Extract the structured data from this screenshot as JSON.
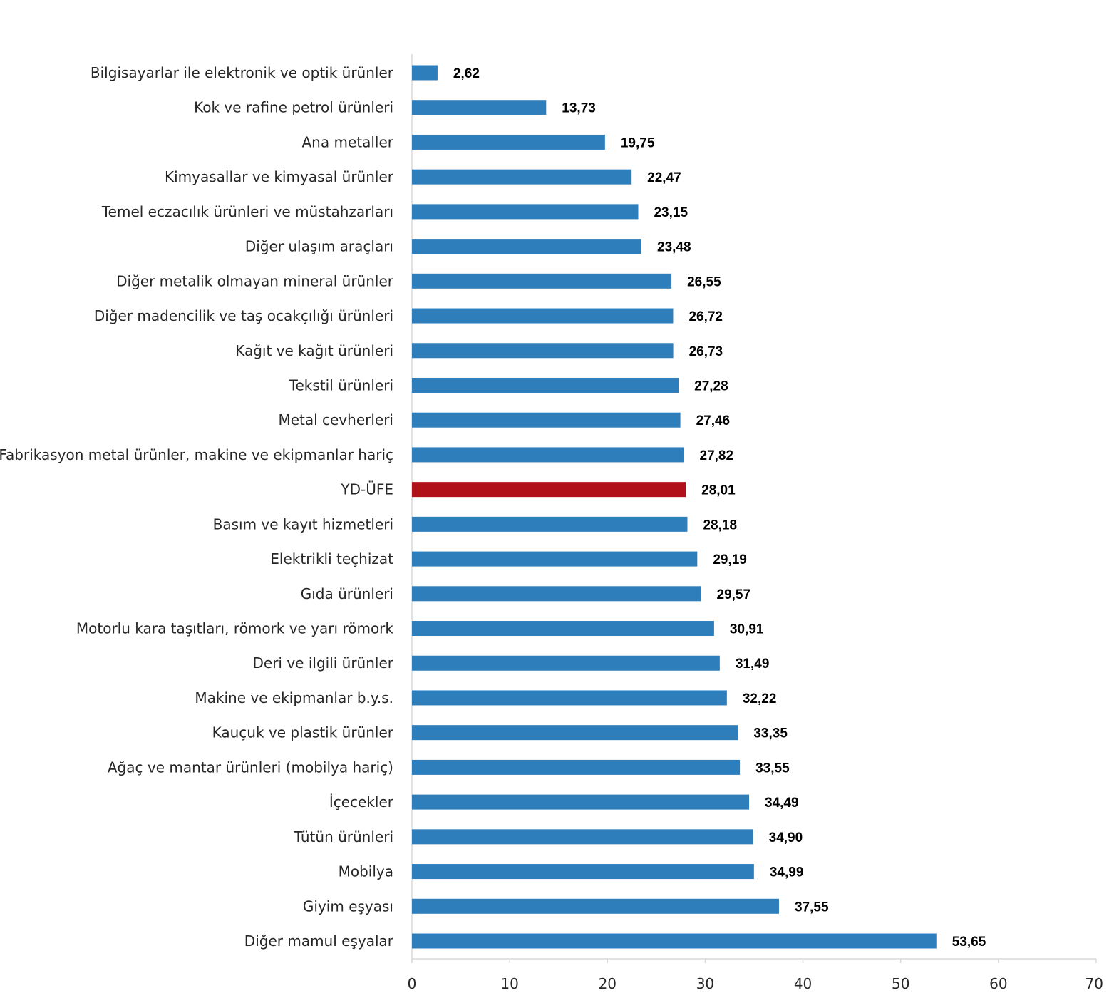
{
  "chart_data": {
    "type": "bar",
    "orientation": "horizontal",
    "title": "",
    "xlabel": "",
    "ylabel": "",
    "xlim": [
      0,
      70
    ],
    "xticks": [
      0,
      10,
      20,
      30,
      40,
      50,
      60,
      70
    ],
    "grid": false,
    "legend": "none",
    "colors": {
      "default": "#2f7ebc",
      "highlight": "#b1121a"
    },
    "highlight_category": "YD-ÜFE",
    "categories": [
      "Bilgisayarlar ile elektronik ve optik ürünler",
      "Kok ve rafine petrol ürünleri",
      "Ana metaller",
      "Kimyasallar ve kimyasal ürünler",
      "Temel eczacılık ürünleri ve müstahzarları",
      "Diğer ulaşım araçları",
      "Diğer metalik olmayan mineral ürünler",
      "Diğer madencilik ve taş ocakçılığı ürünleri",
      "Kağıt ve kağıt ürünleri",
      "Tekstil ürünleri",
      "Metal cevherleri",
      "Fabrikasyon metal ürünler, makine ve ekipmanlar hariç",
      "YD-ÜFE",
      "Basım ve kayıt hizmetleri",
      "Elektrikli teçhizat",
      "Gıda ürünleri",
      "Motorlu kara taşıtları, römork ve yarı römork",
      "Deri ve ilgili ürünler",
      "Makine ve ekipmanlar b.y.s.",
      "Kauçuk ve plastik ürünler",
      "Ağaç ve mantar ürünleri (mobilya hariç)",
      "İçecekler",
      "Tütün ürünleri",
      "Mobilya",
      "Giyim eşyası",
      "Diğer mamul eşyalar"
    ],
    "values": [
      2.62,
      13.73,
      19.75,
      22.47,
      23.15,
      23.48,
      26.55,
      26.72,
      26.73,
      27.28,
      27.46,
      27.82,
      28.01,
      28.18,
      29.19,
      29.57,
      30.91,
      31.49,
      32.22,
      33.35,
      33.55,
      34.49,
      34.9,
      34.99,
      37.55,
      53.65
    ],
    "value_labels": [
      "2,62",
      "13,73",
      "19,75",
      "22,47",
      "23,15",
      "23,48",
      "26,55",
      "26,72",
      "26,73",
      "27,28",
      "27,46",
      "27,82",
      "28,01",
      "28,18",
      "29,19",
      "29,57",
      "30,91",
      "31,49",
      "32,22",
      "33,35",
      "33,55",
      "34,49",
      "34,90",
      "34,99",
      "37,55",
      "53,65"
    ]
  }
}
